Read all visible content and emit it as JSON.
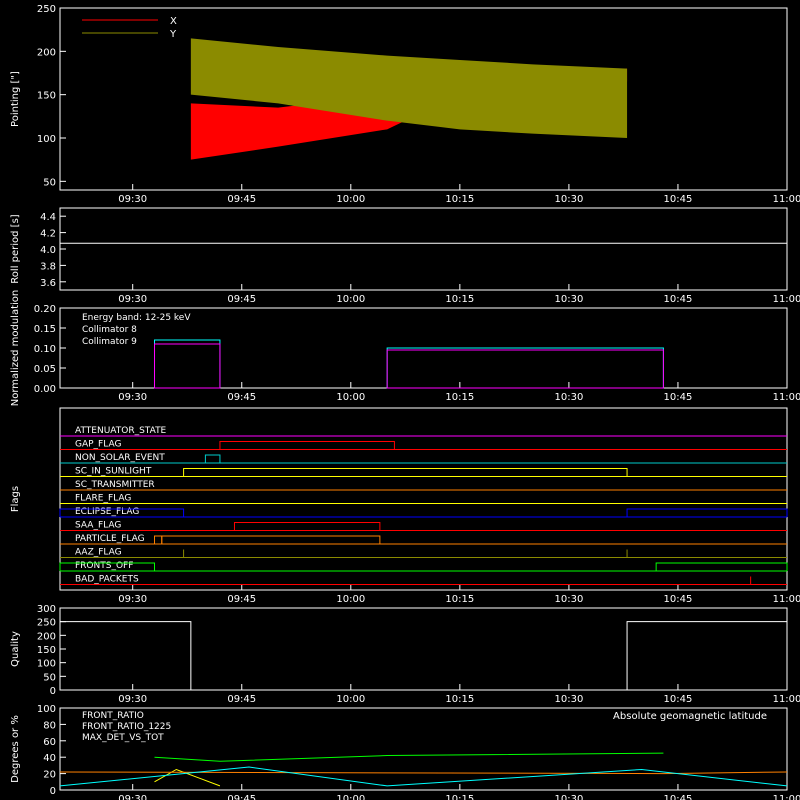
{
  "chart_data": [
    {
      "type": "line",
      "id": "pointing",
      "ylabel": "Pointing [\"]",
      "ylim": [
        40,
        250
      ],
      "yticks": [
        50,
        100,
        150,
        200,
        250
      ],
      "xlim": [
        "09:20",
        "11:00"
      ],
      "xticks": [
        "09:30",
        "09:45",
        "10:00",
        "10:15",
        "10:30",
        "10:45",
        "11:00"
      ],
      "legend_position": "top-left",
      "series": [
        {
          "name": "X",
          "color": "#ff0000",
          "x": [
            "09:20",
            "09:38",
            "09:38",
            "09:50",
            "10:05",
            "10:15",
            "10:25",
            "10:38",
            "10:38",
            "11:00"
          ],
          "y": [
            128,
            128,
            140,
            135,
            150,
            165,
            175,
            180,
            128,
            128
          ],
          "y_low": [
            128,
            128,
            75,
            90,
            110,
            150,
            165,
            165,
            128,
            128
          ]
        },
        {
          "name": "Y",
          "color": "#8b8b00",
          "x": [
            "09:20",
            "09:38",
            "09:38",
            "09:50",
            "10:05",
            "10:15",
            "10:25",
            "10:38",
            "10:38",
            "11:00"
          ],
          "y": [
            128,
            128,
            215,
            205,
            195,
            190,
            185,
            180,
            128,
            128
          ],
          "y_low": [
            128,
            128,
            150,
            140,
            120,
            110,
            105,
            100,
            128,
            128
          ]
        }
      ]
    },
    {
      "type": "line",
      "id": "roll",
      "ylabel": "Roll period [s]",
      "ylim": [
        3.5,
        4.5
      ],
      "yticks": [
        "3.6",
        "3.8",
        "4.0",
        "4.2",
        "4.4"
      ],
      "xticks": [
        "09:30",
        "09:45",
        "10:00",
        "10:15",
        "10:30",
        "10:45",
        "11:00"
      ],
      "series": [
        {
          "color": "#ffffff",
          "x": [
            "09:20",
            "11:00"
          ],
          "y": [
            4.07,
            4.07
          ]
        }
      ]
    },
    {
      "type": "line",
      "id": "modulation",
      "ylabel": "Normalized modulation",
      "ylim": [
        0,
        0.2
      ],
      "yticks": [
        "0.00",
        "0.05",
        "0.10",
        "0.15",
        "0.20"
      ],
      "xticks": [
        "09:30",
        "09:45",
        "10:00",
        "10:15",
        "10:30",
        "10:45",
        "11:00"
      ],
      "annotation": "Energy band: 12-25 keV",
      "legend_position": "top-left",
      "series": [
        {
          "name": "Collimator 8",
          "color": "#00ffff",
          "segments": [
            [
              "09:33",
              "09:42",
              0.12
            ],
            [
              "10:05",
              "10:43",
              0.1
            ]
          ]
        },
        {
          "name": "Collimator 9",
          "color": "#ff00ff",
          "segments": [
            [
              "09:33",
              "09:42",
              0.11
            ],
            [
              "10:05",
              "10:43",
              0.095
            ]
          ]
        }
      ]
    },
    {
      "type": "line",
      "id": "flags",
      "ylabel": "Flags",
      "xticks": [
        "09:30",
        "09:45",
        "10:00",
        "10:15",
        "10:30",
        "10:45",
        "11:00"
      ],
      "flags": [
        {
          "name": "ATTENUATOR_STATE",
          "color": "#ff00ff",
          "steps": []
        },
        {
          "name": "GAP_FLAG",
          "color": "#ff0000",
          "steps": [
            [
              "09:42",
              "10:06"
            ]
          ]
        },
        {
          "name": "NON_SOLAR_EVENT",
          "color": "#00cccc",
          "steps": [
            [
              "09:40",
              "09:42"
            ]
          ]
        },
        {
          "name": "SC_IN_SUNLIGHT",
          "color": "#ffff00",
          "steps": [
            [
              "09:37",
              "10:38"
            ]
          ]
        },
        {
          "name": "SC_TRANSMITTER",
          "color": "#ff8000",
          "steps": []
        },
        {
          "name": "FLARE_FLAG",
          "color": "#ffff00",
          "steps": []
        },
        {
          "name": "ECLIPSE_FLAG",
          "color": "#0000ff",
          "steps": [
            [
              "09:20",
              "09:37"
            ],
            [
              "10:38",
              "11:00"
            ]
          ]
        },
        {
          "name": "SAA_FLAG",
          "color": "#ff0000",
          "steps": [
            [
              "09:44",
              "10:04"
            ]
          ]
        },
        {
          "name": "PARTICLE_FLAG",
          "color": "#ff8000",
          "steps": [
            [
              "09:33",
              "09:34"
            ],
            [
              "09:34",
              "10:04"
            ]
          ]
        },
        {
          "name": "AAZ_FLAG",
          "color": "#8b8b00",
          "steps": [
            [
              "09:37",
              "09:37"
            ],
            [
              "10:38",
              "10:38"
            ]
          ]
        },
        {
          "name": "FRONTS_OFF",
          "color": "#00ff00",
          "steps": [
            [
              "09:20",
              "09:33"
            ],
            [
              "10:42",
              "11:00"
            ]
          ]
        },
        {
          "name": "BAD_PACKETS",
          "color": "#ff0000",
          "steps": [
            [
              "10:55",
              "10:55"
            ]
          ]
        }
      ]
    },
    {
      "type": "line",
      "id": "quality",
      "ylabel": "Quality",
      "ylim": [
        0,
        300
      ],
      "yticks": [
        0,
        50,
        100,
        150,
        200,
        250,
        300
      ],
      "xticks": [
        "09:30",
        "09:45",
        "10:00",
        "10:15",
        "10:30",
        "10:45",
        "11:00"
      ],
      "series": [
        {
          "color": "#ffffff",
          "x": [
            "09:20",
            "09:38",
            "09:38",
            "10:38",
            "10:38",
            "11:00"
          ],
          "y": [
            250,
            250,
            0,
            0,
            250,
            250
          ]
        }
      ]
    },
    {
      "type": "line",
      "id": "ratios",
      "ylabel": "Degrees or %",
      "ylim": [
        0,
        100
      ],
      "yticks": [
        0,
        20,
        40,
        60,
        80,
        100
      ],
      "xticks": [
        "09:30",
        "09:45",
        "10:00",
        "10:15",
        "10:30",
        "10:45",
        "11:00"
      ],
      "annotation": "Absolute geomagnetic latitude",
      "legend_position": "top-left",
      "series": [
        {
          "name": "FRONT_RATIO",
          "color": "#ffff00",
          "x": [
            "09:33",
            "09:36",
            "09:39",
            "09:42"
          ],
          "y": [
            10,
            25,
            15,
            5
          ]
        },
        {
          "name": "FRONT_RATIO_1225",
          "color": "#00ff00",
          "x": [
            "09:33",
            "09:42",
            "10:05",
            "10:43"
          ],
          "y": [
            40,
            35,
            42,
            45
          ]
        },
        {
          "name": "MAX_DET_VS_TOT",
          "color": "#ff8000",
          "x": [
            "09:20",
            "10:43",
            "11:00"
          ],
          "y": [
            22,
            20,
            22
          ]
        },
        {
          "name": "Absolute geomagnetic latitude",
          "color": "#00ffff",
          "x": [
            "09:20",
            "09:46",
            "10:05",
            "10:40",
            "11:00"
          ],
          "y": [
            5,
            28,
            5,
            25,
            5
          ]
        }
      ]
    }
  ]
}
